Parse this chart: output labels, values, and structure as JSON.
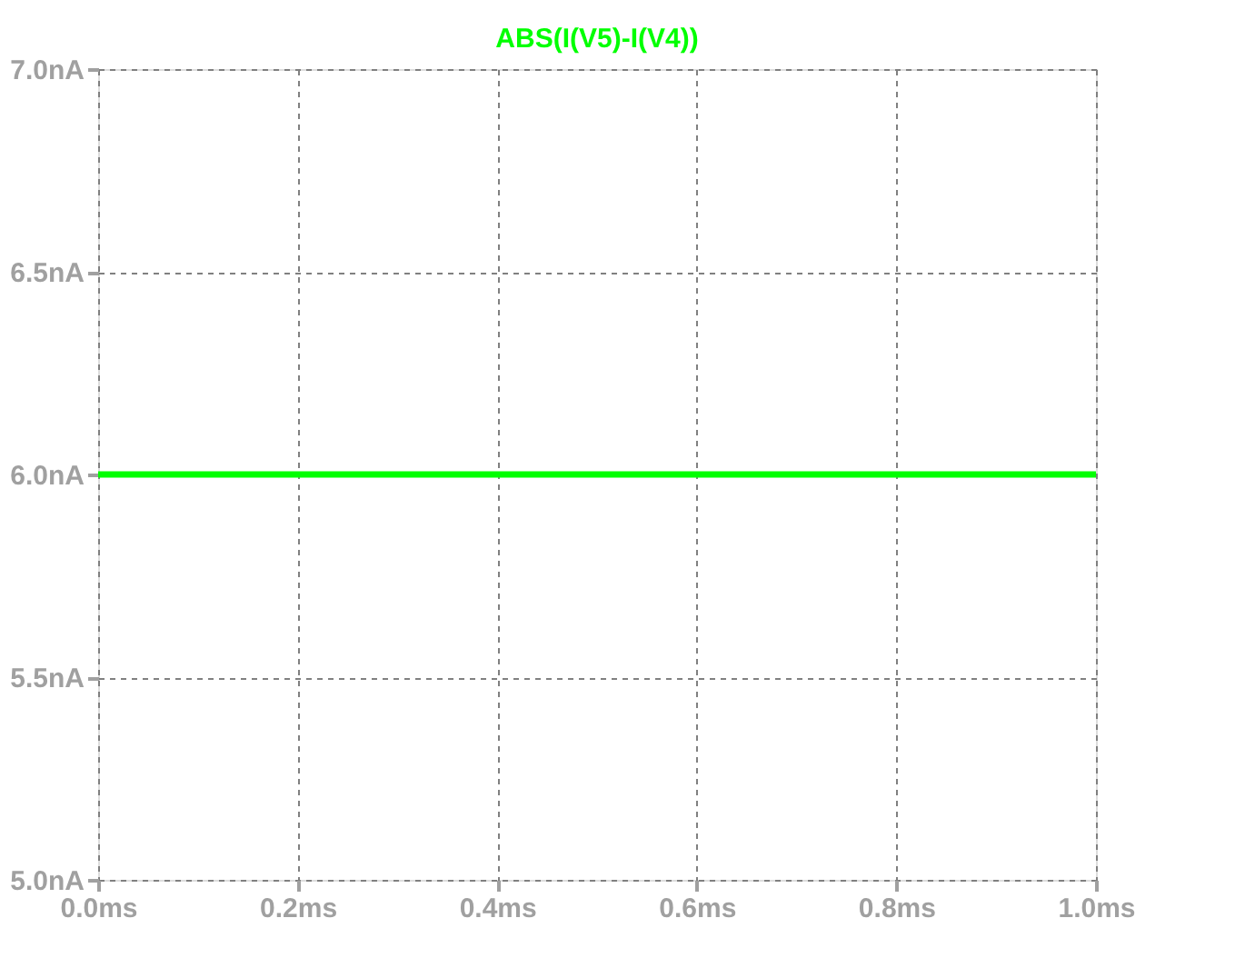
{
  "chart_data": {
    "type": "line",
    "series": [
      {
        "name": "ABS(I(V5)-I(V4))",
        "color": "#00ff00",
        "x": [
          0,
          1
        ],
        "values": [
          6.0,
          6.0
        ]
      }
    ],
    "xlim": [
      0,
      1
    ],
    "ylim": [
      5,
      7
    ],
    "xticks": [
      {
        "value": 0,
        "label": "0.0ms"
      },
      {
        "value": 0.2,
        "label": "0.2ms"
      },
      {
        "value": 0.4,
        "label": "0.4ms"
      },
      {
        "value": 0.6,
        "label": "0.6ms"
      },
      {
        "value": 0.8,
        "label": "0.8ms"
      },
      {
        "value": 1,
        "label": "1.0ms"
      }
    ],
    "yticks": [
      {
        "value": 5,
        "label": "5.0nA"
      },
      {
        "value": 5.5,
        "label": "5.5nA"
      },
      {
        "value": 6,
        "label": "6.0nA"
      },
      {
        "value": 6.5,
        "label": "6.5nA"
      },
      {
        "value": 7,
        "label": "7.0nA"
      }
    ],
    "grid": true,
    "line_style": "solid",
    "marker": "none"
  }
}
